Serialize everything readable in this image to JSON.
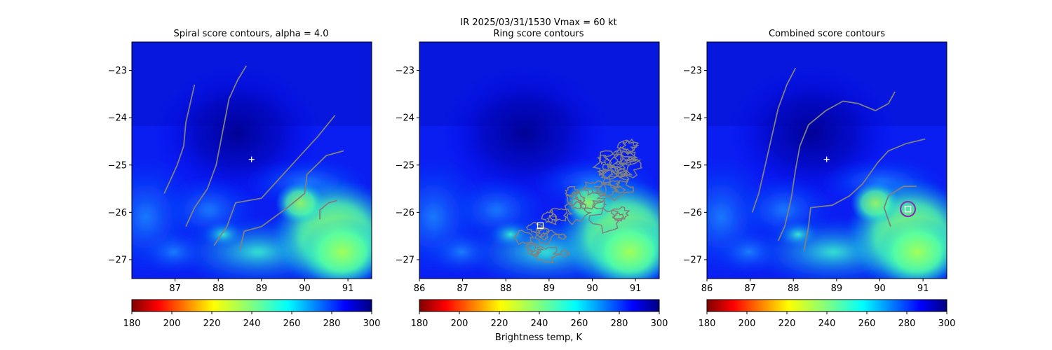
{
  "figure": {
    "suptitle_line1": "IR  2025/03/31/1530    Vmax = 60 kt",
    "colorbar_label": "Brightness temp, K",
    "colormap": "jet_reversed",
    "colors": {
      "contour": "#808080",
      "marker": "#ffffff",
      "ring_circle": "#8b2fb3"
    }
  },
  "chart_data": [
    {
      "type": "heatmap",
      "title": "Spiral score contours, alpha =  4.0",
      "xlim": [
        86,
        91.55
      ],
      "ylim": [
        -27.4,
        -22.4
      ],
      "xticks": [
        "87",
        "88",
        "89",
        "90",
        "91"
      ],
      "yticks": [
        "−23",
        "−24",
        "−25",
        "−26",
        "−27"
      ],
      "xtick_values": [
        87,
        88,
        89,
        90,
        91
      ],
      "ytick_values": [
        -23,
        -24,
        -25,
        -26,
        -27
      ],
      "center_marker": {
        "lon": 88.77,
        "lat": -24.88,
        "symbol": "+"
      },
      "contours": [
        [
          [
            86.75,
            -25.6
          ],
          [
            86.9,
            -25.3
          ],
          [
            87.05,
            -25.0
          ],
          [
            87.2,
            -24.6
          ],
          [
            87.25,
            -24.1
          ],
          [
            87.35,
            -23.7
          ],
          [
            87.45,
            -23.3
          ]
        ],
        [
          [
            87.25,
            -26.3
          ],
          [
            87.45,
            -25.9
          ],
          [
            87.75,
            -25.5
          ],
          [
            87.95,
            -25.0
          ],
          [
            88.1,
            -24.3
          ],
          [
            88.25,
            -23.6
          ],
          [
            88.45,
            -23.2
          ],
          [
            88.65,
            -22.9
          ]
        ],
        [
          [
            87.9,
            -26.7
          ],
          [
            88.2,
            -26.3
          ],
          [
            88.4,
            -25.8
          ],
          [
            89.0,
            -25.7
          ],
          [
            89.4,
            -25.3
          ],
          [
            89.9,
            -24.8
          ],
          [
            90.3,
            -24.4
          ],
          [
            90.7,
            -23.95
          ]
        ],
        [
          [
            88.5,
            -26.8
          ],
          [
            88.6,
            -26.4
          ],
          [
            89.0,
            -26.3
          ],
          [
            89.6,
            -25.9
          ],
          [
            90.0,
            -25.6
          ],
          [
            90.05,
            -25.2
          ],
          [
            90.5,
            -24.8
          ],
          [
            90.9,
            -24.7
          ]
        ],
        [
          [
            90.35,
            -26.15
          ],
          [
            90.35,
            -25.95
          ],
          [
            90.55,
            -25.8
          ],
          [
            90.75,
            -25.75
          ]
        ]
      ],
      "colorbar": {
        "min": 180,
        "max": 300,
        "ticks": [
          "180",
          "200",
          "220",
          "240",
          "260",
          "280",
          "300"
        ]
      }
    },
    {
      "type": "heatmap",
      "title": "Ring score contours",
      "xlim": [
        86,
        91.55
      ],
      "ylim": [
        -27.4,
        -22.4
      ],
      "xticks": [
        "86",
        "87",
        "88",
        "89",
        "90",
        "91"
      ],
      "yticks": [
        "−23",
        "−24",
        "−25",
        "−26",
        "−27"
      ],
      "xtick_values": [
        86,
        87,
        88,
        89,
        90,
        91
      ],
      "ytick_values": [
        -23,
        -24,
        -25,
        -26,
        -27
      ],
      "ring_center": {
        "lon": 88.8,
        "lat": -26.28,
        "symbol": "square"
      },
      "contour_regions": [
        {
          "lon": 88.9,
          "lat": -26.45,
          "rlon": 0.65,
          "rlat": 0.55
        },
        {
          "lon": 90.2,
          "lat": -25.9,
          "rlon": 0.9,
          "rlat": 0.65
        },
        {
          "lon": 90.55,
          "lat": -24.9,
          "rlon": 0.45,
          "rlat": 0.4
        }
      ],
      "colorbar": {
        "min": 180,
        "max": 300,
        "ticks": [
          "180",
          "200",
          "220",
          "240",
          "260",
          "280",
          "300"
        ]
      }
    },
    {
      "type": "heatmap",
      "title": "Combined score contours",
      "xlim": [
        86,
        91.55
      ],
      "ylim": [
        -27.4,
        -22.4
      ],
      "xticks": [
        "86",
        "87",
        "88",
        "89",
        "90",
        "91"
      ],
      "yticks": [
        "−23",
        "−24",
        "−25",
        "−26",
        "−27"
      ],
      "xtick_values": [
        86,
        87,
        88,
        89,
        90,
        91
      ],
      "ytick_values": [
        -23,
        -24,
        -25,
        -26,
        -27
      ],
      "center_marker": {
        "lon": 88.77,
        "lat": -24.88,
        "symbol": "+"
      },
      "ring_center": {
        "lon": 90.65,
        "lat": -25.93,
        "symbol": "square"
      },
      "ring_circle": {
        "lon": 90.65,
        "lat": -25.93,
        "radius_deg": 0.17
      },
      "contours": [
        [
          [
            87.05,
            -26.0
          ],
          [
            87.2,
            -25.6
          ],
          [
            87.35,
            -25.0
          ],
          [
            87.5,
            -24.4
          ],
          [
            87.65,
            -23.8
          ],
          [
            87.85,
            -23.3
          ],
          [
            88.05,
            -22.95
          ]
        ],
        [
          [
            87.65,
            -26.6
          ],
          [
            87.8,
            -26.3
          ],
          [
            87.95,
            -25.7
          ],
          [
            88.05,
            -25.1
          ],
          [
            88.15,
            -24.6
          ],
          [
            88.35,
            -24.15
          ],
          [
            88.75,
            -23.85
          ],
          [
            89.15,
            -23.65
          ],
          [
            89.5,
            -23.7
          ],
          [
            89.9,
            -23.85
          ],
          [
            90.2,
            -23.7
          ],
          [
            90.35,
            -23.45
          ]
        ],
        [
          [
            88.25,
            -26.8
          ],
          [
            88.35,
            -26.3
          ],
          [
            88.4,
            -25.9
          ],
          [
            88.9,
            -25.85
          ],
          [
            89.3,
            -25.65
          ],
          [
            89.6,
            -25.4
          ],
          [
            89.95,
            -24.95
          ],
          [
            90.2,
            -24.7
          ],
          [
            90.6,
            -24.55
          ],
          [
            91.05,
            -24.45
          ]
        ],
        [
          [
            90.25,
            -26.3
          ],
          [
            90.1,
            -25.9
          ],
          [
            90.2,
            -25.65
          ],
          [
            90.55,
            -25.45
          ],
          [
            90.85,
            -25.45
          ]
        ]
      ],
      "colorbar": {
        "min": 180,
        "max": 300,
        "ticks": [
          "180",
          "200",
          "220",
          "240",
          "260",
          "280",
          "300"
        ]
      }
    }
  ]
}
